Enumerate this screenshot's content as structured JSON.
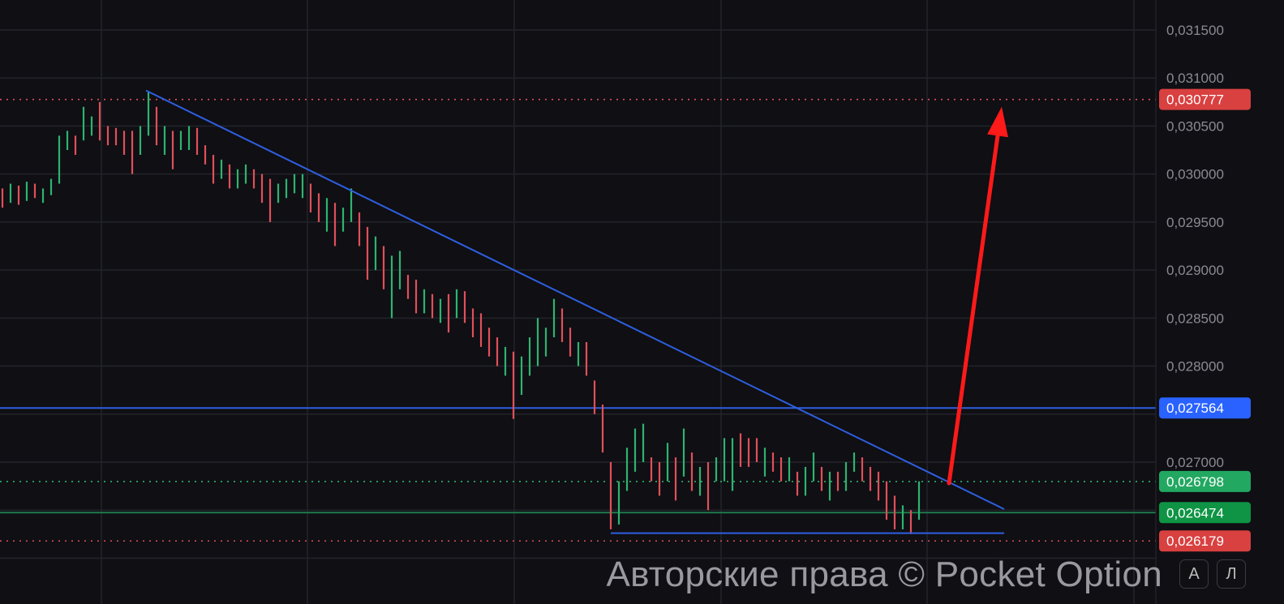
{
  "chart_data": {
    "type": "ohlc-bars",
    "title": "",
    "ylim": [
      0.02595,
      0.0318
    ],
    "y_ticks": [
      "0,031500",
      "0,031000",
      "0,030500",
      "0,030000",
      "0,029500",
      "0,029000",
      "0,028500",
      "0,028000",
      "0,027000"
    ],
    "y_tick_values": [
      0.0315,
      0.031,
      0.0305,
      0.03,
      0.0295,
      0.029,
      0.0285,
      0.028,
      0.027
    ],
    "grid": true,
    "colors": {
      "up": "#2fb36f",
      "down": "#e0505a",
      "background": "#0f0f14",
      "grid": "#23232b",
      "trendline": "#2f5fe0",
      "arrow": "#ff1a1a"
    },
    "bars_format": [
      "high",
      "low",
      "up(1)/down(0)"
    ],
    "bars": [
      [
        0.02985,
        0.02965,
        0
      ],
      [
        0.0299,
        0.0297,
        1
      ],
      [
        0.02988,
        0.02968,
        0
      ],
      [
        0.02992,
        0.02972,
        1
      ],
      [
        0.0299,
        0.02975,
        0
      ],
      [
        0.02985,
        0.0297,
        1
      ],
      [
        0.02995,
        0.02978,
        1
      ],
      [
        0.0304,
        0.0299,
        1
      ],
      [
        0.03045,
        0.03025,
        1
      ],
      [
        0.0304,
        0.0302,
        0
      ],
      [
        0.0307,
        0.03035,
        1
      ],
      [
        0.0306,
        0.0304,
        1
      ],
      [
        0.03075,
        0.03035,
        0
      ],
      [
        0.0305,
        0.0303,
        0
      ],
      [
        0.03048,
        0.0303,
        0
      ],
      [
        0.03045,
        0.0302,
        0
      ],
      [
        0.03045,
        0.03,
        0
      ],
      [
        0.0305,
        0.0302,
        1
      ],
      [
        0.03085,
        0.0304,
        1
      ],
      [
        0.0307,
        0.0303,
        0
      ],
      [
        0.0305,
        0.0302,
        1
      ],
      [
        0.03045,
        0.03005,
        0
      ],
      [
        0.03045,
        0.03025,
        1
      ],
      [
        0.0305,
        0.03025,
        1
      ],
      [
        0.03048,
        0.0302,
        0
      ],
      [
        0.0303,
        0.0301,
        0
      ],
      [
        0.0302,
        0.0299,
        0
      ],
      [
        0.03015,
        0.02995,
        1
      ],
      [
        0.0301,
        0.02985,
        0
      ],
      [
        0.03005,
        0.02985,
        1
      ],
      [
        0.0301,
        0.0299,
        1
      ],
      [
        0.03005,
        0.02985,
        0
      ],
      [
        0.03,
        0.0297,
        0
      ],
      [
        0.02995,
        0.0295,
        0
      ],
      [
        0.0299,
        0.0297,
        1
      ],
      [
        0.02995,
        0.02975,
        1
      ],
      [
        0.03,
        0.0298,
        1
      ],
      [
        0.03,
        0.02975,
        1
      ],
      [
        0.0299,
        0.0296,
        0
      ],
      [
        0.0298,
        0.0295,
        0
      ],
      [
        0.02975,
        0.0294,
        1
      ],
      [
        0.0297,
        0.02925,
        0
      ],
      [
        0.02965,
        0.0294,
        1
      ],
      [
        0.02985,
        0.0295,
        1
      ],
      [
        0.0296,
        0.02925,
        0
      ],
      [
        0.02945,
        0.0289,
        0
      ],
      [
        0.02935,
        0.029,
        1
      ],
      [
        0.02925,
        0.0288,
        0
      ],
      [
        0.02915,
        0.0285,
        1
      ],
      [
        0.0292,
        0.0288,
        1
      ],
      [
        0.02895,
        0.0287,
        0
      ],
      [
        0.0289,
        0.02855,
        0
      ],
      [
        0.0288,
        0.02855,
        1
      ],
      [
        0.02875,
        0.0285,
        0
      ],
      [
        0.0287,
        0.02845,
        1
      ],
      [
        0.02875,
        0.02835,
        0
      ],
      [
        0.0288,
        0.0285,
        1
      ],
      [
        0.02878,
        0.02845,
        0
      ],
      [
        0.0286,
        0.0283,
        0
      ],
      [
        0.02855,
        0.0282,
        0
      ],
      [
        0.0284,
        0.0281,
        0
      ],
      [
        0.0283,
        0.028,
        0
      ],
      [
        0.0282,
        0.0279,
        1
      ],
      [
        0.02815,
        0.02745,
        0
      ],
      [
        0.0281,
        0.0277,
        1
      ],
      [
        0.0283,
        0.0279,
        1
      ],
      [
        0.0285,
        0.028,
        1
      ],
      [
        0.0284,
        0.0281,
        1
      ],
      [
        0.0287,
        0.0283,
        1
      ],
      [
        0.0286,
        0.02825,
        0
      ],
      [
        0.0284,
        0.0281,
        0
      ],
      [
        0.02825,
        0.028,
        1
      ],
      [
        0.02825,
        0.0279,
        0
      ],
      [
        0.02785,
        0.0275,
        0
      ],
      [
        0.0276,
        0.0271,
        0
      ],
      [
        0.027,
        0.0263,
        0
      ],
      [
        0.0268,
        0.02635,
        1
      ],
      [
        0.02715,
        0.0267,
        1
      ],
      [
        0.02735,
        0.0269,
        1
      ],
      [
        0.0274,
        0.027,
        1
      ],
      [
        0.02705,
        0.0268,
        0
      ],
      [
        0.027,
        0.02665,
        0
      ],
      [
        0.0272,
        0.0268,
        1
      ],
      [
        0.02705,
        0.0266,
        0
      ],
      [
        0.02735,
        0.02685,
        1
      ],
      [
        0.0271,
        0.0267,
        0
      ],
      [
        0.02695,
        0.02665,
        1
      ],
      [
        0.027,
        0.0265,
        0
      ],
      [
        0.02705,
        0.0268,
        1
      ],
      [
        0.02725,
        0.0268,
        1
      ],
      [
        0.02725,
        0.0267,
        1
      ],
      [
        0.0273,
        0.02695,
        0
      ],
      [
        0.02725,
        0.02695,
        0
      ],
      [
        0.02725,
        0.027,
        0
      ],
      [
        0.02715,
        0.02685,
        1
      ],
      [
        0.0271,
        0.0269,
        0
      ],
      [
        0.02705,
        0.0268,
        0
      ],
      [
        0.02705,
        0.0268,
        1
      ],
      [
        0.0269,
        0.02665,
        0
      ],
      [
        0.02695,
        0.02665,
        1
      ],
      [
        0.0271,
        0.0268,
        1
      ],
      [
        0.02695,
        0.0267,
        0
      ],
      [
        0.0269,
        0.0266,
        1
      ],
      [
        0.0269,
        0.0267,
        0
      ],
      [
        0.027,
        0.0267,
        1
      ],
      [
        0.0271,
        0.0269,
        1
      ],
      [
        0.02705,
        0.0268,
        0
      ],
      [
        0.02695,
        0.0267,
        0
      ],
      [
        0.0269,
        0.0266,
        0
      ],
      [
        0.0268,
        0.0264,
        0
      ],
      [
        0.02665,
        0.0263,
        0
      ],
      [
        0.02655,
        0.0263,
        1
      ],
      [
        0.0265,
        0.02625,
        0
      ],
      [
        0.0268,
        0.0264,
        1
      ]
    ],
    "price_levels": [
      {
        "label": "0,030777",
        "value": 0.030777,
        "style": "dotted",
        "color": "#e0505a",
        "badge": "#d94040"
      },
      {
        "label": "0,027564",
        "value": 0.027564,
        "style": "solid",
        "color": "#2f5fe0",
        "badge": "#2962ff"
      },
      {
        "label": "0,026798",
        "value": 0.026798,
        "style": "dotted",
        "color": "#2fb36f",
        "badge": "#22a861"
      },
      {
        "label": "0,026474",
        "value": 0.026474,
        "style": "solid",
        "color": "#1f7a4a",
        "badge": "#0e9444"
      },
      {
        "label": "0,026179",
        "value": 0.026179,
        "style": "dotted",
        "color": "#e0505a",
        "badge": "#d94040"
      }
    ],
    "drawings": {
      "descending_trendline": {
        "from_bar": 18,
        "from": 0.03087,
        "to_bar_extended": 123.5,
        "to": 0.02651
      },
      "support_line": {
        "from_bar": 75,
        "to_bar_extended": 123.5,
        "value": 0.02626
      },
      "breakout_arrow": {
        "from_bar": 116.7,
        "from": 0.02678,
        "to_bar_extended": 123.2,
        "to": 0.0307
      }
    }
  },
  "watermark": "Авторские права © Pocket Option",
  "scale_buttons": {
    "auto": "A",
    "log": "Л"
  }
}
